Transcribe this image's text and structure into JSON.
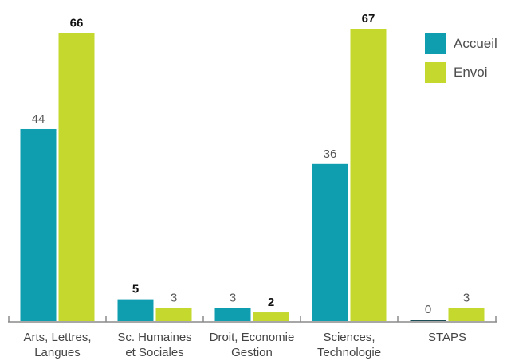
{
  "chart_data": {
    "type": "bar",
    "categories": [
      [
        "Arts, Lettres,",
        "Langues"
      ],
      [
        "Sc. Humaines",
        "et Sociales"
      ],
      [
        "Droit, Economie",
        "Gestion"
      ],
      [
        "Sciences,",
        "Technologie"
      ],
      [
        "STAPS"
      ]
    ],
    "series": [
      {
        "name": "Accueil",
        "values": [
          44,
          5,
          3,
          36,
          0
        ],
        "color": "#0f9db0"
      },
      {
        "name": "Envoi",
        "values": [
          66,
          3,
          2,
          67,
          3
        ],
        "color": "#c4d82e"
      }
    ],
    "bold_labels": [
      [
        false,
        true,
        false,
        false,
        false
      ],
      [
        true,
        false,
        true,
        true,
        false
      ]
    ],
    "ylim": [
      0,
      67
    ],
    "grid": false,
    "legend": "top-right",
    "title": "",
    "xlabel": "",
    "ylabel": ""
  }
}
